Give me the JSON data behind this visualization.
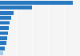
{
  "values": [
    45.4,
    19.8,
    8.7,
    7.2,
    6.1,
    5.5,
    5.0,
    4.4,
    3.9,
    3.2,
    1.8
  ],
  "bar_color": "#2878c0",
  "last_bar_color": "#a8c8e8",
  "background_color": "#f5f5f5",
  "bar_height": 0.75,
  "xlim_max": 50,
  "n_bars": 11,
  "grid_color": "#ffffff",
  "grid_linewidth": 0.5
}
